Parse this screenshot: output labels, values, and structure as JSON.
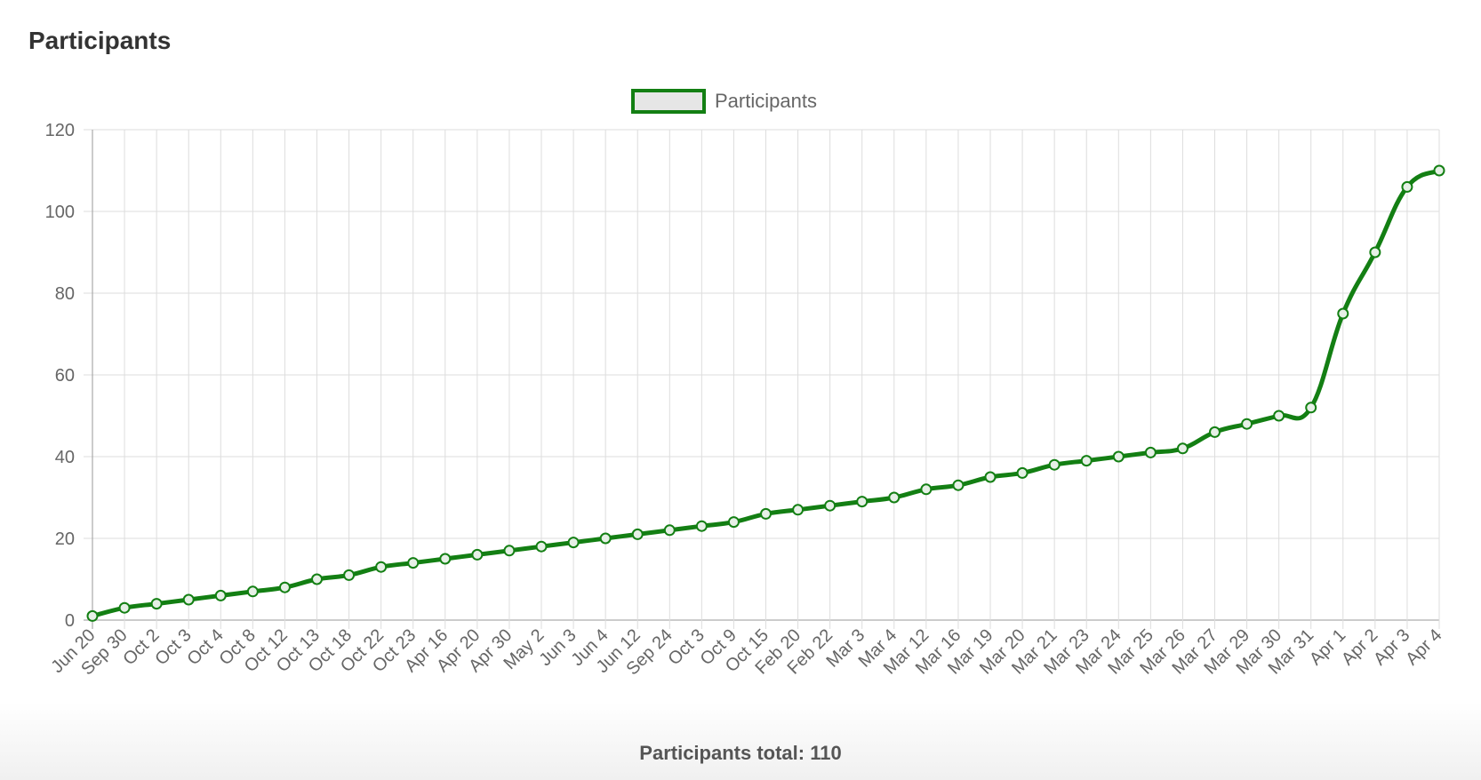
{
  "chart_data": {
    "type": "line",
    "title": "Participants",
    "categories": [
      "Jun 20",
      "Sep 30",
      "Oct 2",
      "Oct 3",
      "Oct 4",
      "Oct 8",
      "Oct 12",
      "Oct 13",
      "Oct 18",
      "Oct 22",
      "Oct 23",
      "Apr 16",
      "Apr 20",
      "Apr 30",
      "May 2",
      "Jun 3",
      "Jun 4",
      "Jun 12",
      "Sep 24",
      "Oct 3",
      "Oct 9",
      "Oct 15",
      "Feb 20",
      "Feb 22",
      "Mar 3",
      "Mar 4",
      "Mar 12",
      "Mar 16",
      "Mar 19",
      "Mar 20",
      "Mar 21",
      "Mar 23",
      "Mar 24",
      "Mar 25",
      "Mar 26",
      "Mar 27",
      "Mar 29",
      "Mar 30",
      "Mar 31",
      "Apr 1",
      "Apr 2",
      "Apr 3",
      "Apr 4"
    ],
    "series": [
      {
        "name": "Participants",
        "color": "#137f13",
        "values": [
          1,
          3,
          4,
          5,
          6,
          7,
          8,
          10,
          11,
          13,
          14,
          15,
          16,
          17,
          18,
          19,
          20,
          21,
          22,
          23,
          24,
          26,
          27,
          28,
          29,
          30,
          32,
          33,
          35,
          36,
          38,
          39,
          40,
          41,
          42,
          46,
          48,
          50,
          52,
          75,
          90,
          106,
          110
        ]
      }
    ],
    "ylim": [
      0,
      120
    ],
    "yticks": [
      0,
      20,
      40,
      60,
      80,
      100,
      120
    ],
    "grid": true,
    "legend": "top",
    "footer": "Participants total: 110"
  }
}
